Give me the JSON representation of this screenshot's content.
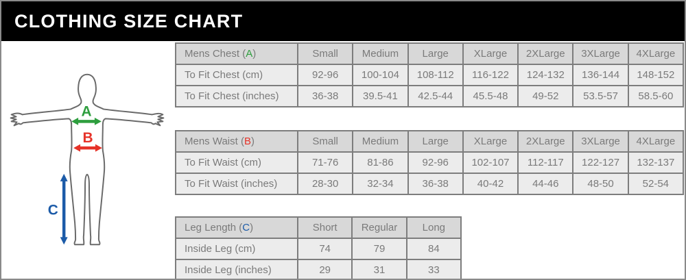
{
  "header": {
    "title": "CLOTHING SIZE CHART"
  },
  "figure": {
    "labels": {
      "chest": "A",
      "waist": "B",
      "leg": "C"
    },
    "colors": {
      "chest": "#2e9e3e",
      "waist": "#e63228",
      "leg": "#1c5ba8",
      "outline": "#6a6a6a"
    }
  },
  "chart_data": [
    {
      "type": "table",
      "title": "Mens Chest (A)",
      "title_prefix": "Mens Chest (",
      "letter": "A",
      "title_suffix": ")",
      "letter_color": "#2e9e3e",
      "columns": [
        "Small",
        "Medium",
        "Large",
        "XLarge",
        "2XLarge",
        "3XLarge",
        "4XLarge"
      ],
      "rows": [
        {
          "label": "To Fit Chest (cm)",
          "values": [
            "92-96",
            "100-104",
            "108-112",
            "116-122",
            "124-132",
            "136-144",
            "148-152"
          ]
        },
        {
          "label": "To Fit Chest (inches)",
          "values": [
            "36-38",
            "39.5-41",
            "42.5-44",
            "45.5-48",
            "49-52",
            "53.5-57",
            "58.5-60"
          ]
        }
      ]
    },
    {
      "type": "table",
      "title": "Mens Waist (B)",
      "title_prefix": "Mens Waist (",
      "letter": "B",
      "title_suffix": ")",
      "letter_color": "#e63228",
      "columns": [
        "Small",
        "Medium",
        "Large",
        "XLarge",
        "2XLarge",
        "3XLarge",
        "4XLarge"
      ],
      "rows": [
        {
          "label": "To Fit Waist (cm)",
          "values": [
            "71-76",
            "81-86",
            "92-96",
            "102-107",
            "112-117",
            "122-127",
            "132-137"
          ]
        },
        {
          "label": "To Fit Waist (inches)",
          "values": [
            "28-30",
            "32-34",
            "36-38",
            "40-42",
            "44-46",
            "48-50",
            "52-54"
          ]
        }
      ]
    },
    {
      "type": "table",
      "title": "Leg Length (C)",
      "title_prefix": "Leg Length (",
      "letter": "C",
      "title_suffix": ")",
      "letter_color": "#1c5ba8",
      "columns": [
        "Short",
        "Regular",
        "Long"
      ],
      "rows": [
        {
          "label": "Inside Leg (cm)",
          "values": [
            "74",
            "79",
            "84"
          ]
        },
        {
          "label": "Inside Leg (inches)",
          "values": [
            "29",
            "31",
            "33"
          ]
        }
      ]
    }
  ]
}
